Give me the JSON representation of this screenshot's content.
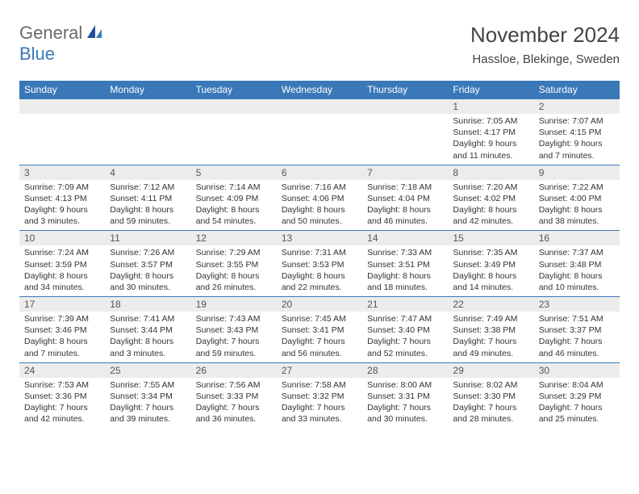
{
  "colors": {
    "header_blue": "#3a78b8",
    "daynum_bg": "#ececec",
    "text_dark": "#333333",
    "logo_gray": "#6a6a6a",
    "bg": "#ffffff",
    "border_blue": "#3a78b8"
  },
  "logo": {
    "part1": "General",
    "part2": "Blue"
  },
  "title": "November 2024",
  "location": "Hassloe, Blekinge, Sweden",
  "day_labels": [
    "Sunday",
    "Monday",
    "Tuesday",
    "Wednesday",
    "Thursday",
    "Friday",
    "Saturday"
  ],
  "calendar": {
    "type": "table",
    "cols": 7,
    "rows": 5,
    "weeks": [
      [
        null,
        null,
        null,
        null,
        null,
        {
          "n": "1",
          "sunrise": "Sunrise: 7:05 AM",
          "sunset": "Sunset: 4:17 PM",
          "day1": "Daylight: 9 hours",
          "day2": "and 11 minutes."
        },
        {
          "n": "2",
          "sunrise": "Sunrise: 7:07 AM",
          "sunset": "Sunset: 4:15 PM",
          "day1": "Daylight: 9 hours",
          "day2": "and 7 minutes."
        }
      ],
      [
        {
          "n": "3",
          "sunrise": "Sunrise: 7:09 AM",
          "sunset": "Sunset: 4:13 PM",
          "day1": "Daylight: 9 hours",
          "day2": "and 3 minutes."
        },
        {
          "n": "4",
          "sunrise": "Sunrise: 7:12 AM",
          "sunset": "Sunset: 4:11 PM",
          "day1": "Daylight: 8 hours",
          "day2": "and 59 minutes."
        },
        {
          "n": "5",
          "sunrise": "Sunrise: 7:14 AM",
          "sunset": "Sunset: 4:09 PM",
          "day1": "Daylight: 8 hours",
          "day2": "and 54 minutes."
        },
        {
          "n": "6",
          "sunrise": "Sunrise: 7:16 AM",
          "sunset": "Sunset: 4:06 PM",
          "day1": "Daylight: 8 hours",
          "day2": "and 50 minutes."
        },
        {
          "n": "7",
          "sunrise": "Sunrise: 7:18 AM",
          "sunset": "Sunset: 4:04 PM",
          "day1": "Daylight: 8 hours",
          "day2": "and 46 minutes."
        },
        {
          "n": "8",
          "sunrise": "Sunrise: 7:20 AM",
          "sunset": "Sunset: 4:02 PM",
          "day1": "Daylight: 8 hours",
          "day2": "and 42 minutes."
        },
        {
          "n": "9",
          "sunrise": "Sunrise: 7:22 AM",
          "sunset": "Sunset: 4:00 PM",
          "day1": "Daylight: 8 hours",
          "day2": "and 38 minutes."
        }
      ],
      [
        {
          "n": "10",
          "sunrise": "Sunrise: 7:24 AM",
          "sunset": "Sunset: 3:59 PM",
          "day1": "Daylight: 8 hours",
          "day2": "and 34 minutes."
        },
        {
          "n": "11",
          "sunrise": "Sunrise: 7:26 AM",
          "sunset": "Sunset: 3:57 PM",
          "day1": "Daylight: 8 hours",
          "day2": "and 30 minutes."
        },
        {
          "n": "12",
          "sunrise": "Sunrise: 7:29 AM",
          "sunset": "Sunset: 3:55 PM",
          "day1": "Daylight: 8 hours",
          "day2": "and 26 minutes."
        },
        {
          "n": "13",
          "sunrise": "Sunrise: 7:31 AM",
          "sunset": "Sunset: 3:53 PM",
          "day1": "Daylight: 8 hours",
          "day2": "and 22 minutes."
        },
        {
          "n": "14",
          "sunrise": "Sunrise: 7:33 AM",
          "sunset": "Sunset: 3:51 PM",
          "day1": "Daylight: 8 hours",
          "day2": "and 18 minutes."
        },
        {
          "n": "15",
          "sunrise": "Sunrise: 7:35 AM",
          "sunset": "Sunset: 3:49 PM",
          "day1": "Daylight: 8 hours",
          "day2": "and 14 minutes."
        },
        {
          "n": "16",
          "sunrise": "Sunrise: 7:37 AM",
          "sunset": "Sunset: 3:48 PM",
          "day1": "Daylight: 8 hours",
          "day2": "and 10 minutes."
        }
      ],
      [
        {
          "n": "17",
          "sunrise": "Sunrise: 7:39 AM",
          "sunset": "Sunset: 3:46 PM",
          "day1": "Daylight: 8 hours",
          "day2": "and 7 minutes."
        },
        {
          "n": "18",
          "sunrise": "Sunrise: 7:41 AM",
          "sunset": "Sunset: 3:44 PM",
          "day1": "Daylight: 8 hours",
          "day2": "and 3 minutes."
        },
        {
          "n": "19",
          "sunrise": "Sunrise: 7:43 AM",
          "sunset": "Sunset: 3:43 PM",
          "day1": "Daylight: 7 hours",
          "day2": "and 59 minutes."
        },
        {
          "n": "20",
          "sunrise": "Sunrise: 7:45 AM",
          "sunset": "Sunset: 3:41 PM",
          "day1": "Daylight: 7 hours",
          "day2": "and 56 minutes."
        },
        {
          "n": "21",
          "sunrise": "Sunrise: 7:47 AM",
          "sunset": "Sunset: 3:40 PM",
          "day1": "Daylight: 7 hours",
          "day2": "and 52 minutes."
        },
        {
          "n": "22",
          "sunrise": "Sunrise: 7:49 AM",
          "sunset": "Sunset: 3:38 PM",
          "day1": "Daylight: 7 hours",
          "day2": "and 49 minutes."
        },
        {
          "n": "23",
          "sunrise": "Sunrise: 7:51 AM",
          "sunset": "Sunset: 3:37 PM",
          "day1": "Daylight: 7 hours",
          "day2": "and 46 minutes."
        }
      ],
      [
        {
          "n": "24",
          "sunrise": "Sunrise: 7:53 AM",
          "sunset": "Sunset: 3:36 PM",
          "day1": "Daylight: 7 hours",
          "day2": "and 42 minutes."
        },
        {
          "n": "25",
          "sunrise": "Sunrise: 7:55 AM",
          "sunset": "Sunset: 3:34 PM",
          "day1": "Daylight: 7 hours",
          "day2": "and 39 minutes."
        },
        {
          "n": "26",
          "sunrise": "Sunrise: 7:56 AM",
          "sunset": "Sunset: 3:33 PM",
          "day1": "Daylight: 7 hours",
          "day2": "and 36 minutes."
        },
        {
          "n": "27",
          "sunrise": "Sunrise: 7:58 AM",
          "sunset": "Sunset: 3:32 PM",
          "day1": "Daylight: 7 hours",
          "day2": "and 33 minutes."
        },
        {
          "n": "28",
          "sunrise": "Sunrise: 8:00 AM",
          "sunset": "Sunset: 3:31 PM",
          "day1": "Daylight: 7 hours",
          "day2": "and 30 minutes."
        },
        {
          "n": "29",
          "sunrise": "Sunrise: 8:02 AM",
          "sunset": "Sunset: 3:30 PM",
          "day1": "Daylight: 7 hours",
          "day2": "and 28 minutes."
        },
        {
          "n": "30",
          "sunrise": "Sunrise: 8:04 AM",
          "sunset": "Sunset: 3:29 PM",
          "day1": "Daylight: 7 hours",
          "day2": "and 25 minutes."
        }
      ]
    ]
  }
}
